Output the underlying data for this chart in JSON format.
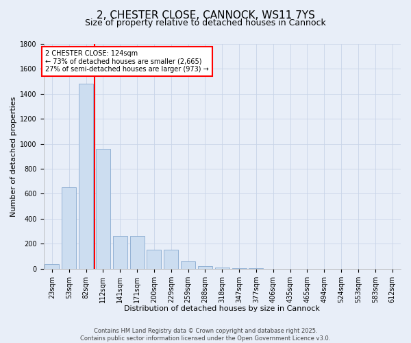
{
  "title": "2, CHESTER CLOSE, CANNOCK, WS11 7YS",
  "subtitle": "Size of property relative to detached houses in Cannock",
  "xlabel": "Distribution of detached houses by size in Cannock",
  "ylabel": "Number of detached properties",
  "categories": [
    "23sqm",
    "53sqm",
    "82sqm",
    "112sqm",
    "141sqm",
    "171sqm",
    "200sqm",
    "229sqm",
    "259sqm",
    "288sqm",
    "318sqm",
    "347sqm",
    "377sqm",
    "406sqm",
    "435sqm",
    "465sqm",
    "494sqm",
    "524sqm",
    "553sqm",
    "583sqm",
    "612sqm"
  ],
  "values": [
    38,
    650,
    1480,
    960,
    260,
    260,
    155,
    155,
    60,
    20,
    10,
    3,
    3,
    0,
    0,
    0,
    0,
    0,
    0,
    0,
    0
  ],
  "bar_color": "#ccddf0",
  "bar_edge_color": "#88aad0",
  "grid_color": "#c8d4e8",
  "background_color": "#e8eef8",
  "vline_x_index": 3,
  "vline_color": "red",
  "annotation_line1": "2 CHESTER CLOSE: 124sqm",
  "annotation_line2": "← 73% of detached houses are smaller (2,665)",
  "annotation_line3": "27% of semi-detached houses are larger (973) →",
  "annotation_box_color": "white",
  "annotation_border_color": "red",
  "ylim": [
    0,
    1800
  ],
  "yticks": [
    0,
    200,
    400,
    600,
    800,
    1000,
    1200,
    1400,
    1600,
    1800
  ],
  "footer": "Contains HM Land Registry data © Crown copyright and database right 2025.\nContains public sector information licensed under the Open Government Licence v3.0.",
  "title_fontsize": 11,
  "subtitle_fontsize": 9,
  "label_fontsize": 8,
  "tick_fontsize": 7,
  "annotation_fontsize": 7,
  "footer_fontsize": 6
}
